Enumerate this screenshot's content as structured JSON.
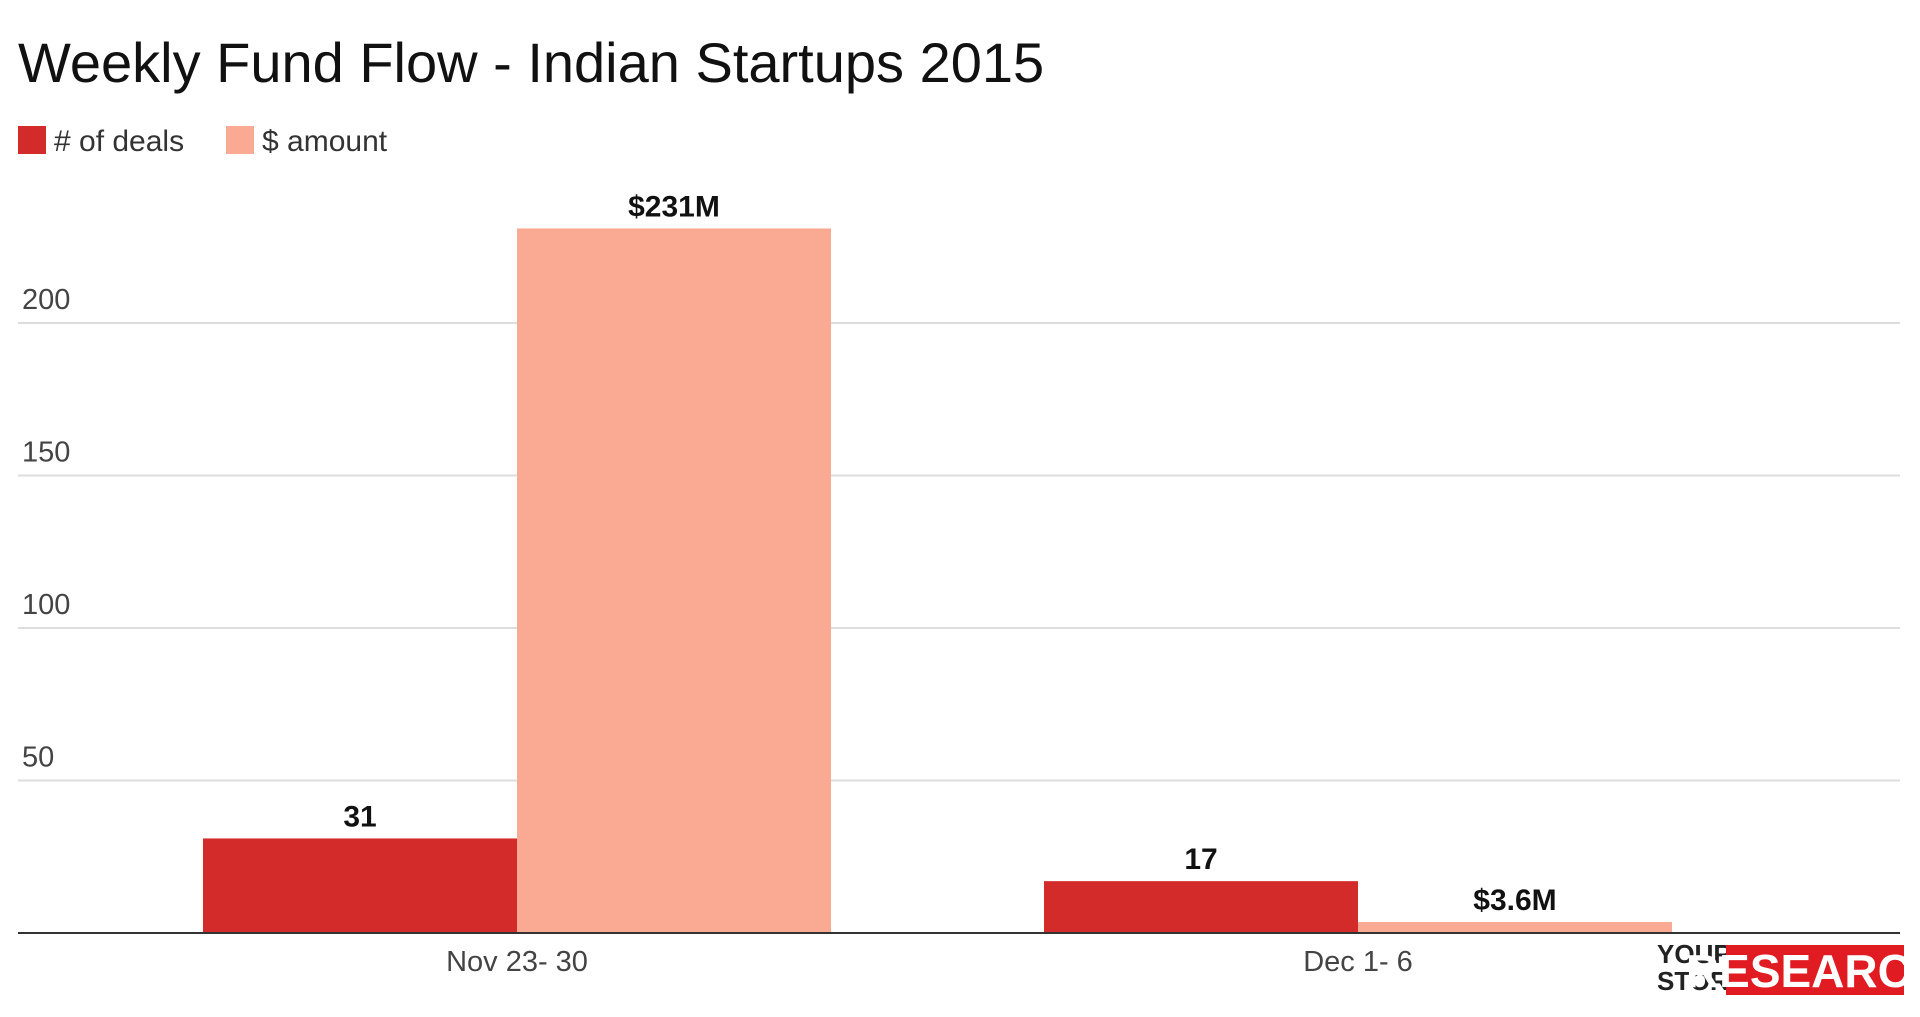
{
  "chart_data": {
    "type": "bar",
    "title": "Weekly Fund Flow - Indian Startups 2015",
    "xlabel": "",
    "ylabel": "",
    "categories": [
      "Nov 23- 30",
      "Dec 1- 6"
    ],
    "series": [
      {
        "name": "# of deals",
        "values": [
          31,
          17
        ],
        "labels": [
          "31",
          "17"
        ],
        "color": "#d32a2a"
      },
      {
        "name": "$ amount",
        "values": [
          231,
          3.6
        ],
        "labels": [
          "$231M",
          "$3.6M"
        ],
        "color": "#faaa92"
      }
    ],
    "yticks": [
      50,
      100,
      150,
      200
    ],
    "ylim": [
      0,
      240
    ],
    "grid": true,
    "legend_position": "top-left"
  },
  "branding": {
    "line1": "YOUR",
    "line2": "STORY",
    "word": "RESEARCH",
    "accent": "#e11b22"
  }
}
